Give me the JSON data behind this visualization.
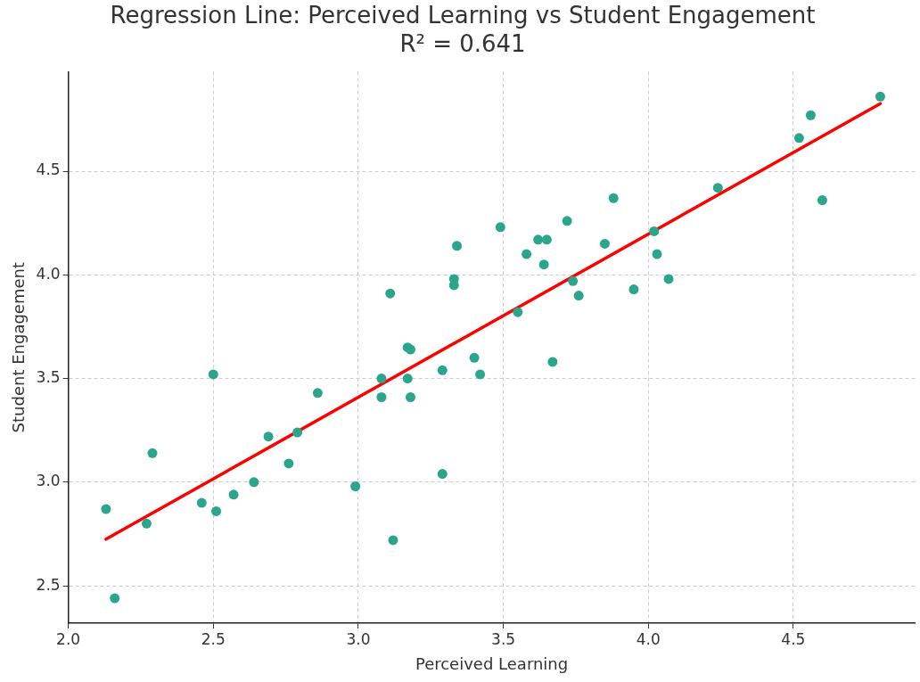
{
  "chart_data": {
    "type": "scatter",
    "title": "Regression Line: Perceived Learning vs Student Engagement",
    "subtitle": "R² = 0.641",
    "xlabel": "Perceived Learning",
    "ylabel": "Student Engagement",
    "xlim": [
      2.0,
      4.92
    ],
    "ylim": [
      2.32,
      4.98
    ],
    "xticks": [
      {
        "value": 2,
        "label": "2.0"
      },
      {
        "value": 2.5,
        "label": "2.5"
      },
      {
        "value": 3,
        "label": "3.0"
      },
      {
        "value": 3.5,
        "label": "3.5"
      },
      {
        "value": 4,
        "label": "4.0"
      },
      {
        "value": 4.5,
        "label": "4.5"
      }
    ],
    "yticks": [
      {
        "value": 2.5,
        "label": "2.5"
      },
      {
        "value": 3,
        "label": "3.0"
      },
      {
        "value": 3.5,
        "label": "3.5"
      },
      {
        "value": 4,
        "label": "4.0"
      },
      {
        "value": 4.5,
        "label": "4.5"
      }
    ],
    "grid": true,
    "legend": false,
    "marker": "circle",
    "series": [
      {
        "type": "scatter",
        "color": "#2ca58d",
        "x": [
          2.13,
          2.16,
          2.27,
          2.29,
          2.46,
          2.5,
          2.51,
          2.57,
          2.64,
          2.69,
          2.76,
          2.79,
          2.86,
          2.99,
          3.08,
          3.08,
          3.11,
          3.12,
          3.17,
          3.18,
          3.17,
          3.18,
          3.29,
          3.29,
          3.33,
          3.33,
          3.34,
          3.4,
          3.42,
          3.49,
          3.55,
          3.58,
          3.62,
          3.64,
          3.65,
          3.67,
          3.72,
          3.74,
          3.76,
          3.85,
          3.88,
          3.95,
          4.02,
          4.03,
          4.07,
          4.24,
          4.52,
          4.56,
          4.6,
          4.8
        ],
        "values": [
          2.87,
          2.44,
          2.8,
          3.14,
          2.9,
          3.52,
          2.86,
          2.94,
          3.0,
          3.22,
          3.09,
          3.24,
          3.43,
          2.98,
          3.5,
          3.41,
          3.91,
          2.72,
          3.65,
          3.64,
          3.5,
          3.41,
          3.54,
          3.04,
          3.95,
          3.98,
          4.14,
          3.6,
          3.52,
          4.23,
          3.82,
          4.1,
          4.17,
          4.05,
          4.17,
          3.58,
          4.26,
          3.97,
          3.9,
          4.15,
          4.37,
          3.93,
          4.21,
          4.1,
          3.98,
          4.42,
          4.66,
          4.77,
          4.36,
          4.86
        ]
      },
      {
        "type": "line",
        "color": "#ff0000",
        "marker": "none",
        "x": [
          2.13,
          4.8
        ],
        "values": [
          2.725,
          4.826
        ]
      }
    ]
  }
}
